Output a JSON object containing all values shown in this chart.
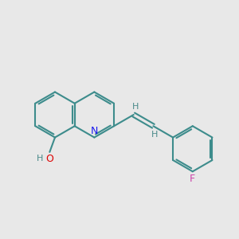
{
  "bg_color": "#e8e8e8",
  "bond_color": "#3d8c8c",
  "N_color": "#1a1aee",
  "O_color": "#dd0000",
  "F_color": "#cc44aa",
  "H_color": "#4a8a8a",
  "lw": 1.5,
  "bl": 0.95,
  "bc_x": 2.3,
  "bc_y": 5.2,
  "figsize": [
    3.0,
    3.0
  ],
  "dpi": 100,
  "xlim": [
    0,
    10
  ],
  "ylim": [
    0,
    10
  ]
}
